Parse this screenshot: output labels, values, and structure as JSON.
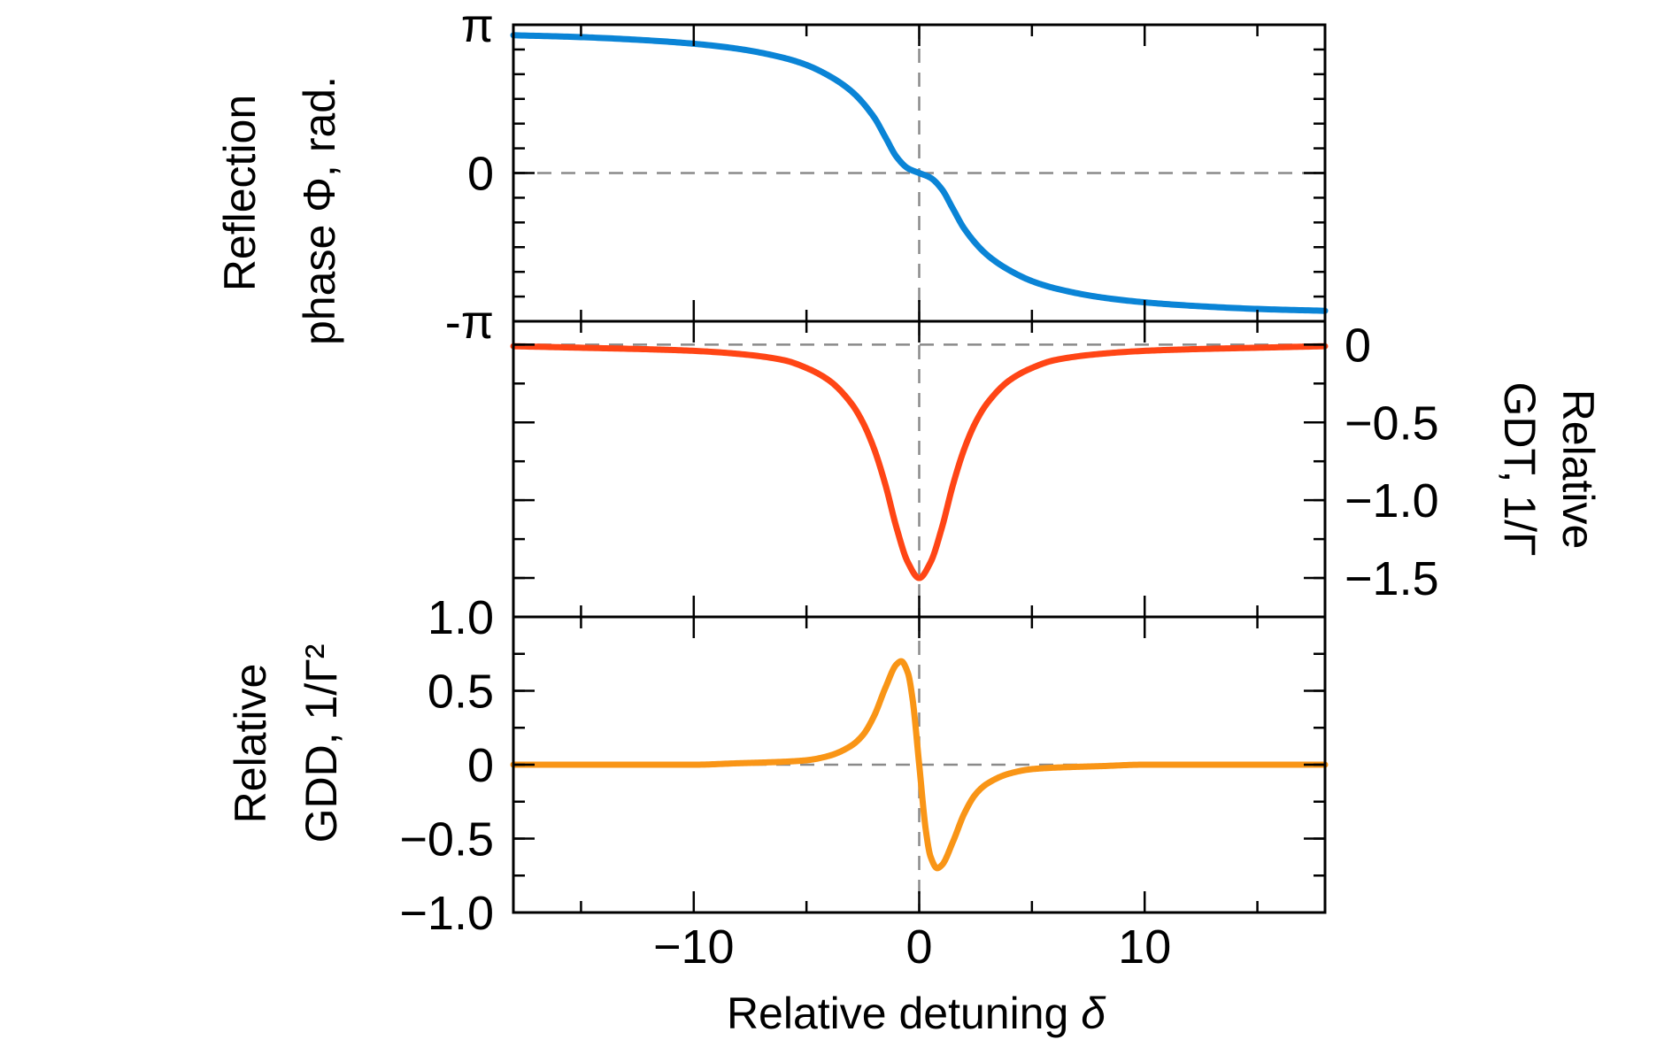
{
  "chart_data": {
    "type": "line",
    "shared_x": {
      "label_text": "Relative detuning ",
      "label_symbol": "δ",
      "xlim": [
        -18,
        18
      ],
      "ticks": [
        -10,
        0,
        10
      ],
      "tick_labels": [
        "−10",
        "0",
        "10"
      ]
    },
    "panels": [
      {
        "id": "phase",
        "ylabel_lines": [
          "Reflection",
          "phase Φ, rad."
        ],
        "ylim": [
          -3.1416,
          3.1416
        ],
        "y_ticks": [
          3.1416,
          0,
          -3.1416
        ],
        "y_tick_labels": [
          "π",
          "0",
          "-π"
        ],
        "y_axis_side": "left",
        "color": "#0A84D6",
        "series": {
          "name": "Reflection phase",
          "x": [
            -18,
            -15,
            -12,
            -10,
            -8,
            -6,
            -5,
            -4,
            -3,
            -2,
            -1.5,
            -1,
            -0.5,
            0,
            0.5,
            1,
            1.5,
            2,
            3,
            4,
            5,
            6,
            8,
            10,
            12,
            15,
            18
          ],
          "values": [
            2.92,
            2.88,
            2.81,
            2.74,
            2.63,
            2.44,
            2.29,
            2.06,
            1.73,
            1.18,
            0.76,
            0.34,
            0.1,
            0.0,
            -0.1,
            -0.34,
            -0.76,
            -1.18,
            -1.73,
            -2.06,
            -2.29,
            -2.44,
            -2.63,
            -2.74,
            -2.81,
            -2.88,
            -2.92
          ]
        }
      },
      {
        "id": "gdt",
        "ylabel_lines": [
          "Relative",
          "GDT, 1/Γ"
        ],
        "ylim": [
          -1.75,
          0.15
        ],
        "y_ticks": [
          0,
          -0.5,
          -1.0,
          -1.5
        ],
        "y_tick_labels": [
          "0",
          "−0.5",
          "−1.0",
          "−1.5"
        ],
        "y_axis_side": "right",
        "color": "#FF4515",
        "series": {
          "name": "Relative GDT",
          "x": [
            -18,
            -15,
            -12,
            -10,
            -8,
            -6,
            -5,
            -4,
            -3,
            -2.5,
            -2,
            -1.5,
            -1,
            -0.5,
            0,
            0.5,
            1,
            1.5,
            2,
            2.5,
            3,
            4,
            5,
            6,
            8,
            10,
            12,
            15,
            18
          ],
          "values": [
            -0.01,
            -0.02,
            -0.03,
            -0.04,
            -0.06,
            -0.1,
            -0.15,
            -0.23,
            -0.38,
            -0.5,
            -0.67,
            -0.9,
            -1.18,
            -1.4,
            -1.5,
            -1.4,
            -1.18,
            -0.9,
            -0.67,
            -0.5,
            -0.38,
            -0.23,
            -0.15,
            -0.1,
            -0.06,
            -0.04,
            -0.03,
            -0.02,
            -0.01
          ]
        }
      },
      {
        "id": "gdd",
        "ylabel_lines": [
          "Relative",
          "GDD, 1/Γ²"
        ],
        "ylim": [
          -1.0,
          1.0
        ],
        "y_ticks": [
          1.0,
          0.5,
          0,
          -0.5,
          -1.0
        ],
        "y_tick_labels": [
          "1.0",
          "0.5",
          "0",
          "−0.5",
          "−1.0"
        ],
        "y_axis_side": "left",
        "color": "#F99516",
        "series": {
          "name": "Relative GDD",
          "x": [
            -18,
            -15,
            -12,
            -10,
            -8,
            -6,
            -5,
            -4,
            -3,
            -2.5,
            -2,
            -1.5,
            -1,
            -0.8,
            -0.5,
            -0.3,
            0,
            0.3,
            0.5,
            0.8,
            1,
            1.5,
            2,
            2.5,
            3,
            4,
            5,
            6,
            8,
            10,
            12,
            15,
            18
          ],
          "values": [
            0.0,
            0.0,
            0.0,
            0.0,
            0.01,
            0.02,
            0.03,
            0.06,
            0.13,
            0.2,
            0.33,
            0.52,
            0.68,
            0.7,
            0.62,
            0.45,
            0.0,
            -0.45,
            -0.62,
            -0.7,
            -0.68,
            -0.52,
            -0.33,
            -0.2,
            -0.13,
            -0.06,
            -0.03,
            -0.02,
            -0.01,
            0.0,
            0.0,
            0.0,
            0.0
          ]
        }
      }
    ]
  }
}
